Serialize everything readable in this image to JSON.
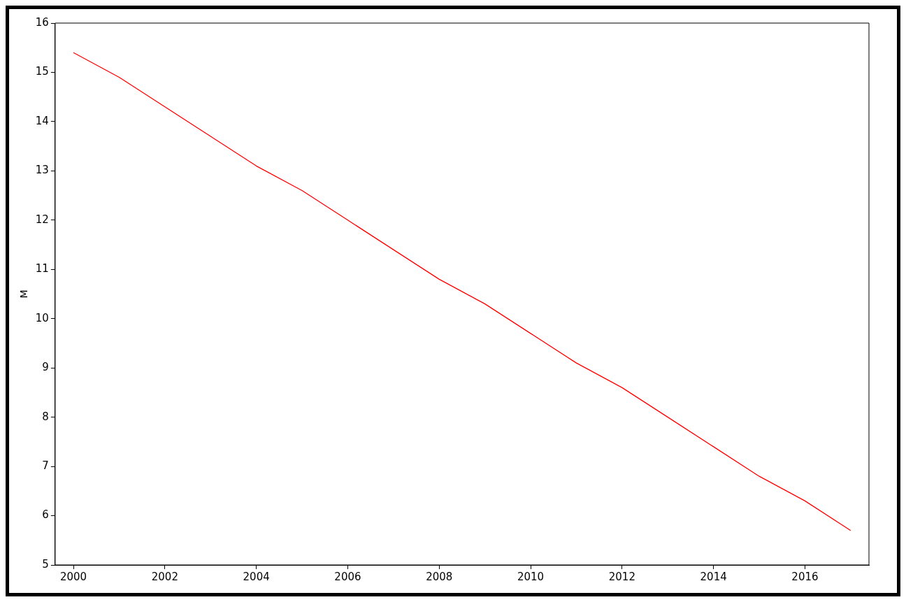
{
  "chart_data": {
    "type": "line",
    "ylabel": "M",
    "x": [
      2000,
      2001,
      2002,
      2003,
      2004,
      2005,
      2006,
      2007,
      2008,
      2009,
      2010,
      2011,
      2012,
      2013,
      2014,
      2015,
      2016,
      2017
    ],
    "series": [
      {
        "color": "#ff0000",
        "values": [
          15.4,
          14.9,
          14.3,
          13.7,
          13.1,
          12.6,
          12.0,
          11.4,
          10.8,
          10.3,
          9.7,
          9.1,
          8.6,
          8.0,
          7.4,
          6.8,
          6.3,
          5.7
        ]
      }
    ],
    "xlim": [
      1999.6,
      2017.4
    ],
    "xticks": [
      2000,
      2002,
      2004,
      2006,
      2008,
      2010,
      2012,
      2014,
      2016
    ],
    "ylim": [
      5,
      16
    ],
    "yticks": [
      5,
      6,
      7,
      8,
      9,
      10,
      11,
      12,
      13,
      14,
      15,
      16
    ],
    "grid": false,
    "legend": false,
    "marker": "none",
    "line_style": "solid"
  }
}
